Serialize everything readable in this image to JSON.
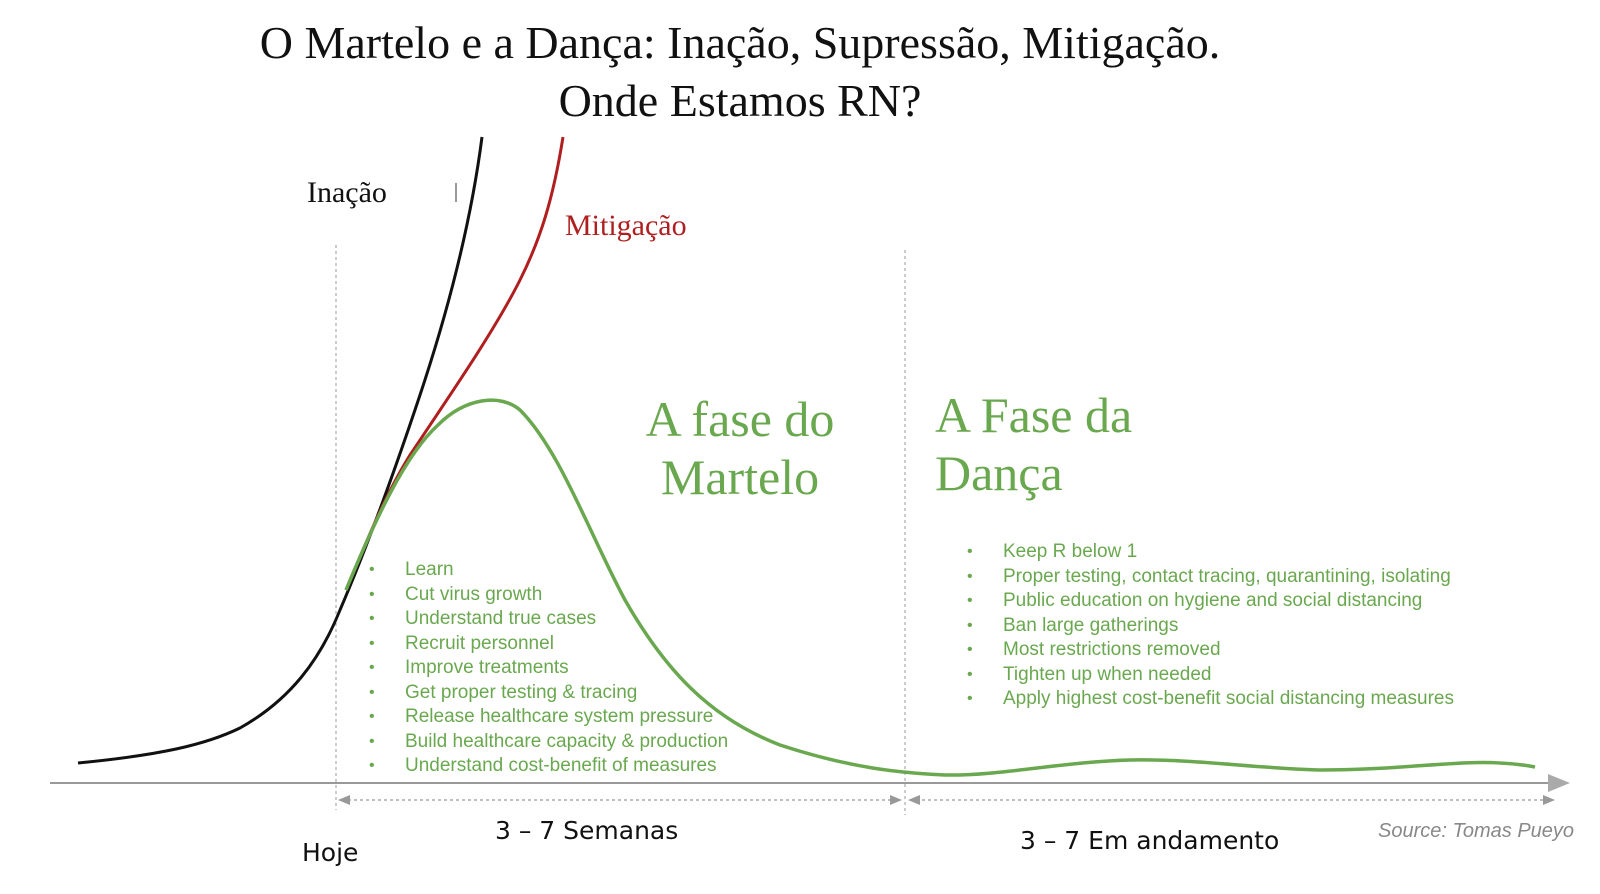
{
  "title": {
    "line1": "O Martelo e a Dança:  Inação, Supressão, Mitigação.",
    "line2": "Onde Estamos RN?"
  },
  "curves": {
    "inacao": {
      "label": "Inação",
      "color": "#111111"
    },
    "mitigacao": {
      "label": "Mitigação",
      "color": "#b01f1f"
    },
    "supressao": {
      "color": "#6aa84f"
    }
  },
  "phases": {
    "martelo": {
      "title_line1": "A fase do",
      "title_line2": "Martelo",
      "items": [
        "Learn",
        "Cut virus growth",
        "Understand true cases",
        "Recruit personnel",
        "Improve treatments",
        "Get proper testing & tracing",
        "Release healthcare system pressure",
        "Build healthcare capacity & production",
        "Understand cost-benefit of measures"
      ],
      "duration": "3 – 7 Semanas"
    },
    "danca": {
      "title_line1": "A Fase da",
      "title_line2": "Dança",
      "items": [
        "Keep R below 1",
        "Proper testing, contact tracing, quarantining, isolating",
        "Public education on hygiene and social distancing",
        "Ban large gatherings",
        "Most restrictions removed",
        "Tighten up when needed",
        "Apply highest cost-benefit social distancing measures"
      ],
      "duration": "3 – 7 Em andamento"
    }
  },
  "today_label": "Hoje",
  "source": "Source: Tomas Pueyo",
  "colors": {
    "green": "#6aa84f",
    "red": "#b01f1f",
    "axis": "#999999"
  }
}
